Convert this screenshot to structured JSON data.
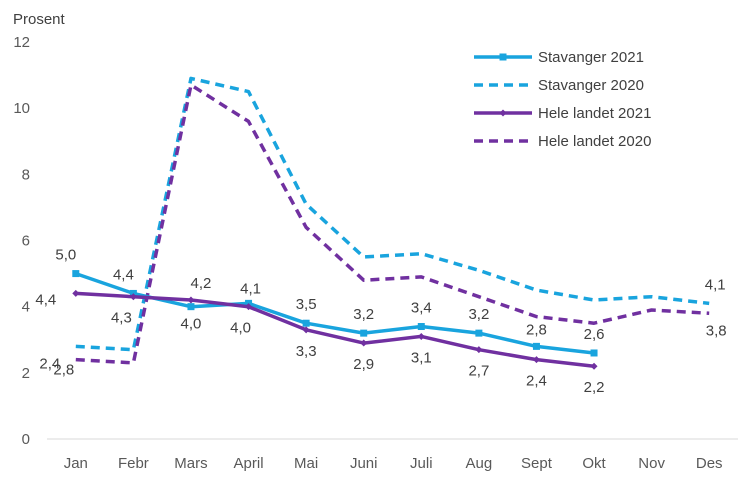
{
  "chart_data": {
    "type": "line",
    "ylabel": "Prosent",
    "ylim": [
      0,
      12
    ],
    "yticks": [
      "0",
      "2",
      "4",
      "6",
      "8",
      "10",
      "12"
    ],
    "categories": [
      "Jan",
      "Febr",
      "Mars",
      "April",
      "Mai",
      "Juni",
      "Juli",
      "Aug",
      "Sept",
      "Okt",
      "Nov",
      "Des"
    ],
    "grid": false,
    "legend_position": "top-right",
    "series": [
      {
        "name": "Stavanger 2021",
        "color": "#19A4DE",
        "style": "solid",
        "marker": "square",
        "values": [
          5.0,
          4.4,
          4.0,
          4.1,
          3.5,
          3.2,
          3.4,
          3.2,
          2.8,
          2.6,
          null,
          null
        ],
        "labels": [
          "5,0",
          "4,4",
          "4,0",
          "4,1",
          "3,5",
          "3,2",
          "3,4",
          "3,2",
          "2,8",
          "2,6",
          "",
          ""
        ]
      },
      {
        "name": "Stavanger 2020",
        "color": "#19A4DE",
        "style": "dashed",
        "marker": "none",
        "values": [
          2.8,
          2.7,
          10.9,
          10.5,
          7.1,
          5.5,
          5.6,
          5.1,
          4.5,
          4.2,
          4.3,
          4.1
        ],
        "labels": [
          "2,8",
          "",
          "",
          "",
          "",
          "",
          "",
          "",
          "",
          "",
          "",
          "4,1"
        ]
      },
      {
        "name": "Hele landet 2021",
        "color": "#7030A0",
        "style": "solid",
        "marker": "diamond",
        "values": [
          4.4,
          4.3,
          4.2,
          4.0,
          3.3,
          2.9,
          3.1,
          2.7,
          2.4,
          2.2,
          null,
          null
        ],
        "labels": [
          "4,4",
          "4,3",
          "4,2",
          "4,0",
          "3,3",
          "2,9",
          "3,1",
          "2,7",
          "2,4",
          "2,2",
          "",
          ""
        ]
      },
      {
        "name": "Hele landet 2020",
        "color": "#7030A0",
        "style": "dashed",
        "marker": "none",
        "values": [
          2.4,
          2.3,
          10.7,
          9.6,
          6.4,
          4.8,
          4.9,
          4.3,
          3.7,
          3.5,
          3.9,
          3.8
        ],
        "labels": [
          "2,4",
          "",
          "",
          "",
          "",
          "",
          "",
          "",
          "",
          "",
          "",
          "3,8"
        ]
      }
    ]
  }
}
